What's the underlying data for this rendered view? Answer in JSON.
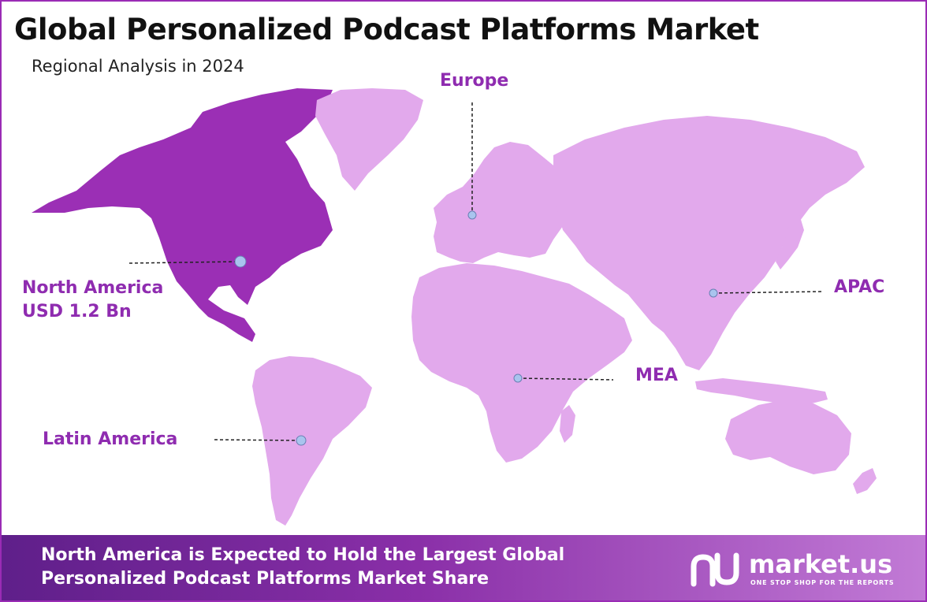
{
  "header": {
    "title": "Global Personalized Podcast Platforms Market",
    "subtitle": "Regional Analysis in 2024"
  },
  "regions": {
    "europe": "Europe",
    "north_america_name": "North America",
    "north_america_value": "USD 1.2 Bn",
    "apac": "APAC",
    "mea": "MEA",
    "latin_america": "Latin America"
  },
  "colors": {
    "highlight_region": "#9b2fb5",
    "other_regions": "#e2a9ec",
    "label_text": "#8f2cb0",
    "marker_fill": "#a9c4ee"
  },
  "footer": {
    "line1": "North America is Expected to Hold the Largest Global",
    "line2": "Personalized Podcast Platforms Market Share"
  },
  "brand": {
    "name": "market.us",
    "tagline": "ONE STOP SHOP FOR THE REPORTS"
  }
}
